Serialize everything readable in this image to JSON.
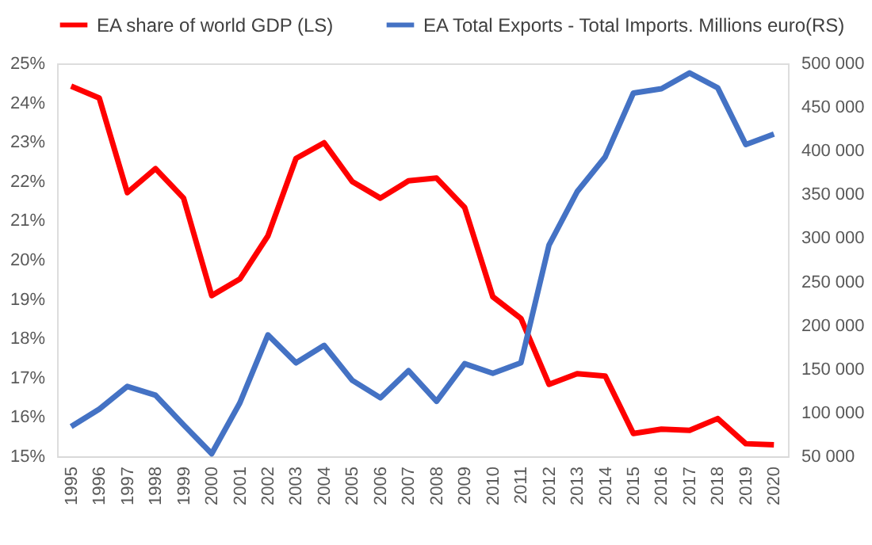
{
  "chart_data": {
    "type": "line",
    "legend": "top",
    "grid": false,
    "marker": "none",
    "line_style": "solid",
    "categories": [
      "1995",
      "1996",
      "1997",
      "1998",
      "1999",
      "2000",
      "2001",
      "2002",
      "2003",
      "2004",
      "2005",
      "2006",
      "2007",
      "2008",
      "2009",
      "2010",
      "2011",
      "2012",
      "2013",
      "2014",
      "2015",
      "2016",
      "2017",
      "2018",
      "2019",
      "2020"
    ],
    "series": [
      {
        "name": "EA share of world GDP (LS)",
        "color": "#ff0000",
        "values": [
          24.42,
          24.12,
          21.71,
          22.32,
          21.57,
          19.09,
          19.51,
          20.61,
          22.58,
          22.98,
          21.99,
          21.57,
          22.01,
          22.08,
          21.33,
          19.06,
          18.51,
          16.83,
          17.1,
          17.04,
          15.58,
          15.69,
          15.66,
          15.96,
          15.32,
          15.29
        ]
      },
      {
        "name": "EA Total Exports - Total Imports. Millions euro(RS)",
        "color": "#4472c4",
        "axis": "y2",
        "values": [
          84000,
          104000,
          130000,
          120000,
          86000,
          53000,
          111000,
          189000,
          157000,
          177000,
          137000,
          117000,
          148000,
          113000,
          156000,
          145000,
          157000,
          292000,
          353000,
          393000,
          466000,
          471000,
          489000,
          472000,
          407000,
          419000
        ]
      }
    ],
    "ylim": [
      15,
      25
    ],
    "yticks": [
      {
        "value": 15,
        "label": "15%"
      },
      {
        "value": 16,
        "label": "16%"
      },
      {
        "value": 17,
        "label": "17%"
      },
      {
        "value": 18,
        "label": "18%"
      },
      {
        "value": 19,
        "label": "19%"
      },
      {
        "value": 20,
        "label": "20%"
      },
      {
        "value": 21,
        "label": "21%"
      },
      {
        "value": 22,
        "label": "22%"
      },
      {
        "value": 23,
        "label": "23%"
      },
      {
        "value": 24,
        "label": "24%"
      },
      {
        "value": 25,
        "label": "25%"
      }
    ],
    "y2lim": [
      50000,
      500000
    ],
    "y2ticks": [
      {
        "value": 50000,
        "label": "50 000"
      },
      {
        "value": 100000,
        "label": "100 000"
      },
      {
        "value": 150000,
        "label": "150 000"
      },
      {
        "value": 200000,
        "label": "200 000"
      },
      {
        "value": 250000,
        "label": "250 000"
      },
      {
        "value": 300000,
        "label": "300 000"
      },
      {
        "value": 350000,
        "label": "350 000"
      },
      {
        "value": 400000,
        "label": "400 000"
      },
      {
        "value": 450000,
        "label": "450 000"
      },
      {
        "value": 500000,
        "label": "500 000"
      }
    ]
  }
}
